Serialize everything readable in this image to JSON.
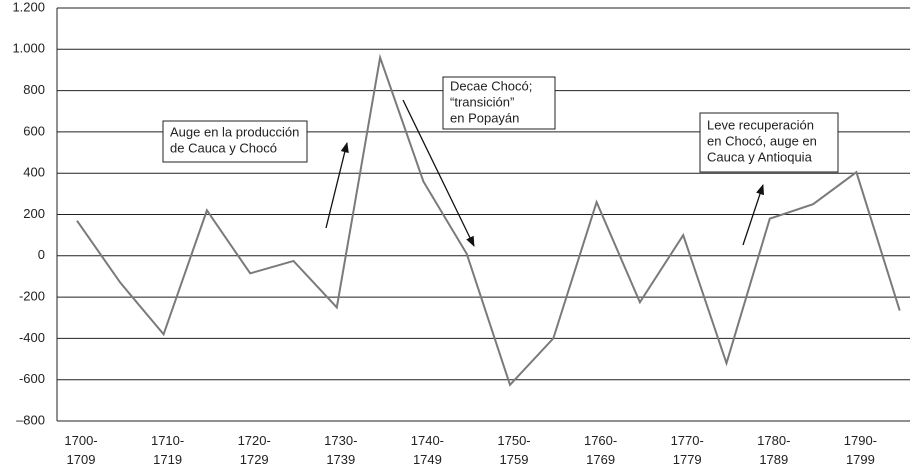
{
  "chart_data": {
    "type": "line",
    "categories": [
      "1700-1709",
      null,
      "1710-1719",
      null,
      "1720-1729",
      null,
      "1730-1739",
      null,
      "1740-1749",
      null,
      "1750-1759",
      null,
      "1760-1769",
      null,
      "1770-1779",
      null,
      "1780-1789",
      null,
      "1790-1799",
      null
    ],
    "series": [
      {
        "color": "#7a7a7a",
        "values": [
          170,
          -130,
          -380,
          220,
          -85,
          -25,
          -250,
          960,
          360,
          10,
          -625,
          -400,
          260,
          -225,
          100,
          -520,
          180,
          250,
          405,
          -265
        ]
      }
    ],
    "ylim": [
      -800,
      1200
    ],
    "yticks": [
      {
        "value": -800,
        "label": "–800"
      },
      -600,
      -400,
      -200,
      0,
      200,
      400,
      600,
      800,
      {
        "value": 1000,
        "label": "1.000"
      },
      {
        "value": 1200,
        "label": "1.200"
      }
    ],
    "grid": true,
    "annotations": [
      [
        "Auge en la producción",
        "de Cauca y Chocó"
      ],
      [
        "Decae Chocó;",
        "“transición”",
        "en Popayán"
      ],
      [
        "Leve recuperación",
        "en Chocó, auge en",
        "Cauca y Antioquia"
      ]
    ]
  }
}
